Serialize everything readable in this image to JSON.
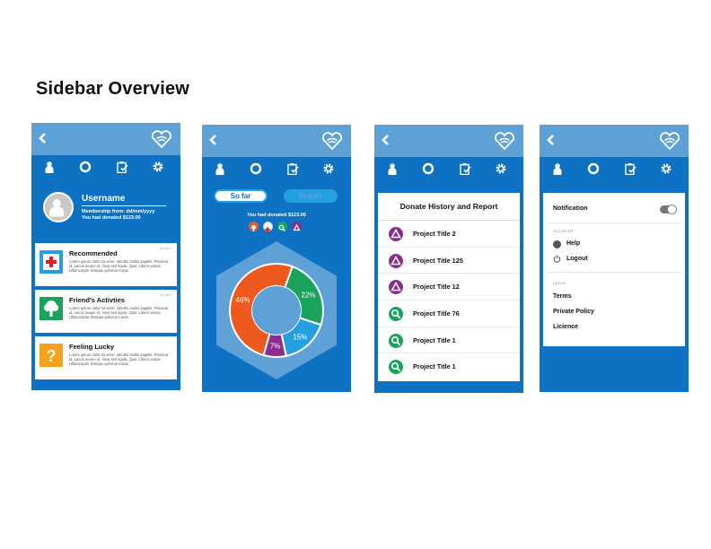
{
  "page": {
    "title": "Sidebar Overview"
  },
  "colors": {
    "primary": "#0d72c4",
    "topbar": "#5da1d6",
    "orange": "#ee5a1e",
    "green": "#1aa35c",
    "lightblue": "#24a0e0",
    "purple": "#8a2c90"
  },
  "nav_icons": [
    "user-icon",
    "donut-icon",
    "clipboard-icon",
    "gear-icon"
  ],
  "phone1": {
    "username": "Username",
    "membership": "Membership from: dd/mm/yyyy",
    "donated": "You had donated $123.00",
    "cards": [
      {
        "title": "Recommended",
        "time": "3h later",
        "icon": "red-cross-icon",
        "body": "Lorem ipsum dolor sit amet, lobortis mollis sagittis. Placerat id. Lacus neque et, risus sed ligula. Quis. Libero varius. Ullamcorper tristique pulvinar turpis."
      },
      {
        "title": "Friend's Activties",
        "time": "4h later",
        "icon": "tree-icon",
        "body": "Lorem ipsum dolor sit amet, lobortis mollis sagittis. Placerat id. Lacus neque et, risus sed ligula. Quis. Libero varius. Ullamcorper tristique pulvinar turpis."
      },
      {
        "title": "Feeling Lucky",
        "time": "",
        "icon": "question-icon",
        "body": "Lorem ipsum dolor sit amet, lobortis mollis sagittis. Placerat id. Lacus neque et, risus sed ligula. Quis. Libero varius. Ullamcorper tristique pulvinar turpis."
      }
    ]
  },
  "phone2": {
    "tab_so_far": "So far",
    "tab_future": "Future",
    "donated": "You had donated $123.00",
    "category_icons": [
      "tree-icon",
      "red-cross-icon",
      "search-icon",
      "recycle-icon"
    ]
  },
  "chart_data": {
    "type": "pie",
    "categories": [
      "Orange",
      "Green",
      "Light blue",
      "Purple"
    ],
    "values": [
      46,
      22,
      15,
      7
    ],
    "labels": [
      "46%",
      "22%",
      "15%",
      "7%"
    ],
    "colors": [
      "#ee5a1e",
      "#1aa35c",
      "#24a0e0",
      "#8a2c90"
    ]
  },
  "phone3": {
    "heading": "Donate History and Report",
    "rows": [
      {
        "label": "Project Title 2",
        "icon": "recycle-icon",
        "color": "#8a2c90"
      },
      {
        "label": "Project Title 125",
        "icon": "recycle-icon",
        "color": "#8a2c90"
      },
      {
        "label": "Project Title 12",
        "icon": "recycle-icon",
        "color": "#8a2c90"
      },
      {
        "label": "Project Title 76",
        "icon": "search-icon",
        "color": "#1aa35c"
      },
      {
        "label": "Project Title 1",
        "icon": "search-icon",
        "color": "#1aa35c"
      },
      {
        "label": "Project Title 1",
        "icon": "search-icon",
        "color": "#1aa35c"
      }
    ]
  },
  "phone4": {
    "notification": "Notification",
    "account_label": "ACCOUNT",
    "help": "Help",
    "logout": "Logout",
    "legal_label": "LEGAL",
    "terms": "Terms",
    "privacy": "Private Policy",
    "licence": "Licience"
  }
}
